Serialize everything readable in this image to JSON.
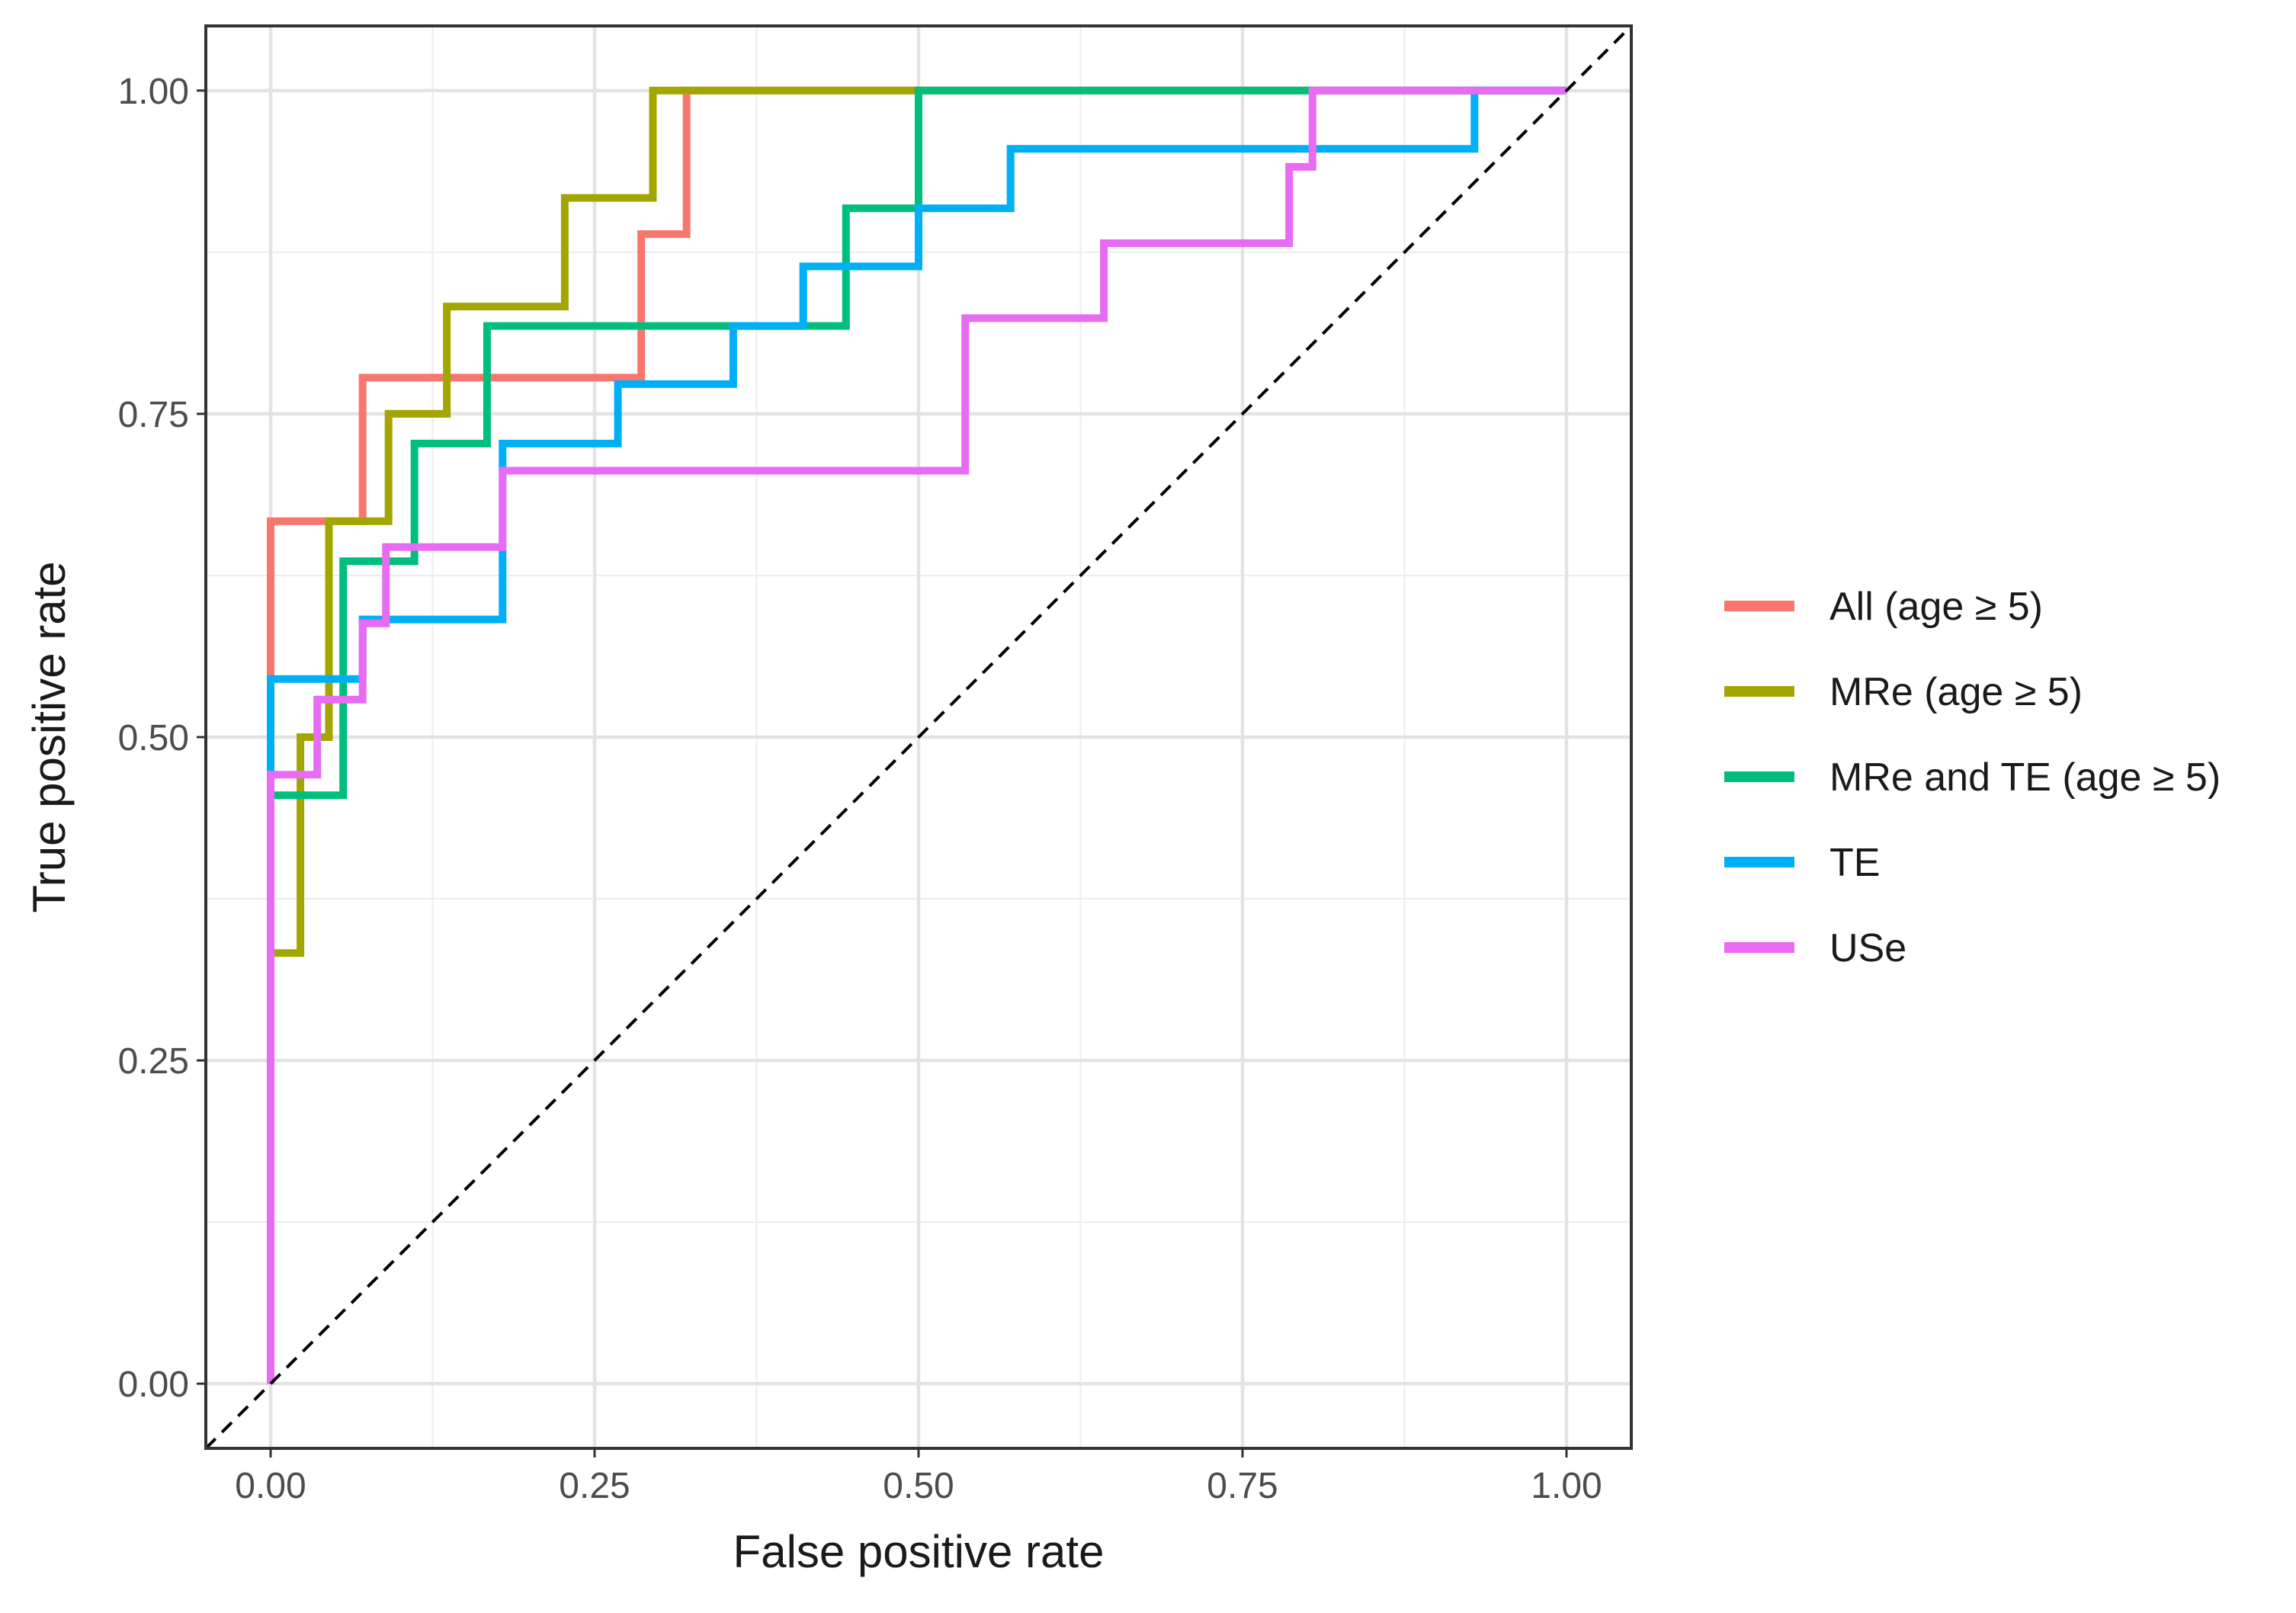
{
  "chart_data": {
    "type": "line",
    "xlabel": "False positive rate",
    "ylabel": "True positive rate",
    "xlim": [
      -0.05,
      1.05
    ],
    "ylim": [
      -0.05,
      1.05
    ],
    "xticks": [
      0.0,
      0.25,
      0.5,
      0.75,
      1.0
    ],
    "xtick_labels": [
      "0.00",
      "0.25",
      "0.50",
      "0.75",
      "1.00"
    ],
    "yticks": [
      0.0,
      0.25,
      0.5,
      0.75,
      1.0
    ],
    "ytick_labels": [
      "0.00",
      "0.25",
      "0.50",
      "0.75",
      "1.00"
    ],
    "grid": true,
    "legend_position": "right",
    "reference_line": {
      "from": [
        0,
        0
      ],
      "to": [
        1,
        1
      ],
      "style": "dashed",
      "color": "#000000"
    },
    "series": [
      {
        "name": "All (age ≥ 5)",
        "legend_prefix": "All (age ",
        "legend_symbol": "≥",
        "legend_suffix": " 5)",
        "color": "#F8766D",
        "x": [
          0,
          0,
          0.071,
          0.071,
          0.286,
          0.286,
          0.321,
          0.321,
          1.0
        ],
        "y": [
          0,
          0.667,
          0.667,
          0.778,
          0.778,
          0.889,
          0.889,
          1.0,
          1.0
        ]
      },
      {
        "name": "MRe (age ≥ 5)",
        "legend_prefix": "MRe (age ",
        "legend_symbol": "≥",
        "legend_suffix": " 5)",
        "color": "#A3A500",
        "x": [
          0,
          0,
          0.023,
          0.023,
          0.045,
          0.045,
          0.091,
          0.091,
          0.136,
          0.136,
          0.227,
          0.227,
          0.295,
          0.295,
          0.341,
          0.341,
          1.0
        ],
        "y": [
          0,
          0.333,
          0.333,
          0.5,
          0.5,
          0.667,
          0.667,
          0.75,
          0.75,
          0.833,
          0.833,
          0.917,
          0.917,
          1.0,
          1.0,
          1.0,
          1.0
        ]
      },
      {
        "name": "MRe and TE (age ≥ 5)",
        "legend_prefix": "MRe and TE (age ",
        "legend_symbol": "≥",
        "legend_suffix": " 5)",
        "color": "#00BF7D",
        "x": [
          0,
          0,
          0.056,
          0.056,
          0.111,
          0.111,
          0.167,
          0.167,
          0.444,
          0.444,
          0.5,
          0.5,
          1.0
        ],
        "y": [
          0,
          0.455,
          0.455,
          0.636,
          0.636,
          0.727,
          0.727,
          0.818,
          0.818,
          0.909,
          0.909,
          1.0,
          1.0
        ]
      },
      {
        "name": "TE",
        "legend_prefix": "TE",
        "legend_symbol": "",
        "legend_suffix": "",
        "color": "#00B0F6",
        "x": [
          0,
          0,
          0.071,
          0.071,
          0.179,
          0.179,
          0.268,
          0.268,
          0.357,
          0.357,
          0.411,
          0.411,
          0.5,
          0.5,
          0.571,
          0.571,
          0.929,
          0.929,
          1.0
        ],
        "y": [
          0,
          0.545,
          0.545,
          0.591,
          0.591,
          0.727,
          0.727,
          0.773,
          0.773,
          0.818,
          0.818,
          0.864,
          0.864,
          0.909,
          0.909,
          0.955,
          0.955,
          1.0,
          1.0
        ]
      },
      {
        "name": "USe",
        "legend_prefix": "USe",
        "legend_symbol": "",
        "legend_suffix": "",
        "color": "#E76BF3",
        "x": [
          0,
          0,
          0.036,
          0.036,
          0.071,
          0.071,
          0.089,
          0.089,
          0.179,
          0.179,
          0.536,
          0.536,
          0.643,
          0.643,
          0.786,
          0.786,
          0.804,
          0.804,
          1.0
        ],
        "y": [
          0,
          0.471,
          0.471,
          0.529,
          0.529,
          0.588,
          0.588,
          0.647,
          0.647,
          0.706,
          0.706,
          0.824,
          0.824,
          0.882,
          0.882,
          0.941,
          0.941,
          1.0,
          1.0
        ]
      }
    ]
  }
}
